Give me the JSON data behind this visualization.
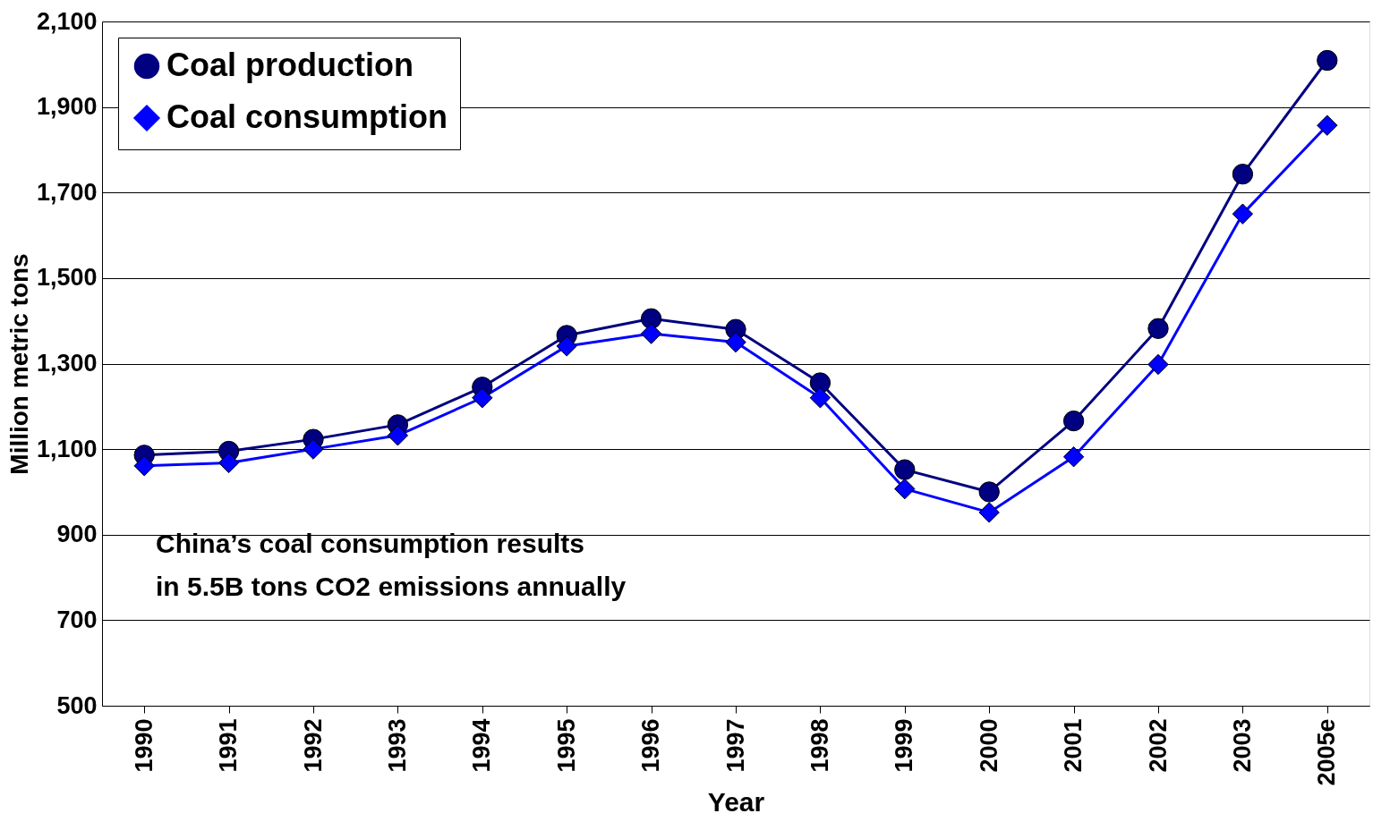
{
  "chart_data": {
    "type": "line",
    "xlabel": "Year",
    "ylabel": "Million metric tons",
    "categories": [
      "1990",
      "1991",
      "1992",
      "1993",
      "1994",
      "1995",
      "1996",
      "1997",
      "1998",
      "1999",
      "2000",
      "2001",
      "2002",
      "2003",
      "2005e"
    ],
    "series": [
      {
        "name": "Coal production",
        "color": "#000080",
        "marker": "circle",
        "values": [
          1086,
          1095,
          1123,
          1157,
          1245,
          1366,
          1405,
          1380,
          1255,
          1052,
          1000,
          1166,
          1382,
          1743,
          2009
        ]
      },
      {
        "name": "Coal consumption",
        "color": "#0000ff",
        "marker": "diamond",
        "values": [
          1061,
          1068,
          1100,
          1132,
          1220,
          1341,
          1370,
          1350,
          1220,
          1007,
          952,
          1082,
          1298,
          1650,
          1857
        ]
      }
    ],
    "ylim": [
      500,
      2100
    ],
    "yticks": [
      500,
      700,
      900,
      {
        "value": 1100,
        "label": "1,100"
      },
      {
        "value": 1300,
        "label": "1,300"
      },
      {
        "value": 1500,
        "label": "1,500"
      },
      {
        "value": 1700,
        "label": "1,700"
      },
      {
        "value": 1900,
        "label": "1,900"
      },
      {
        "value": 2100,
        "label": "2,100"
      }
    ],
    "grid": "y",
    "legend": "top left",
    "line_style": "solid",
    "annotations": [
      "China’s coal consumption results\nin 5.5B tons CO2 emissions annually"
    ]
  }
}
